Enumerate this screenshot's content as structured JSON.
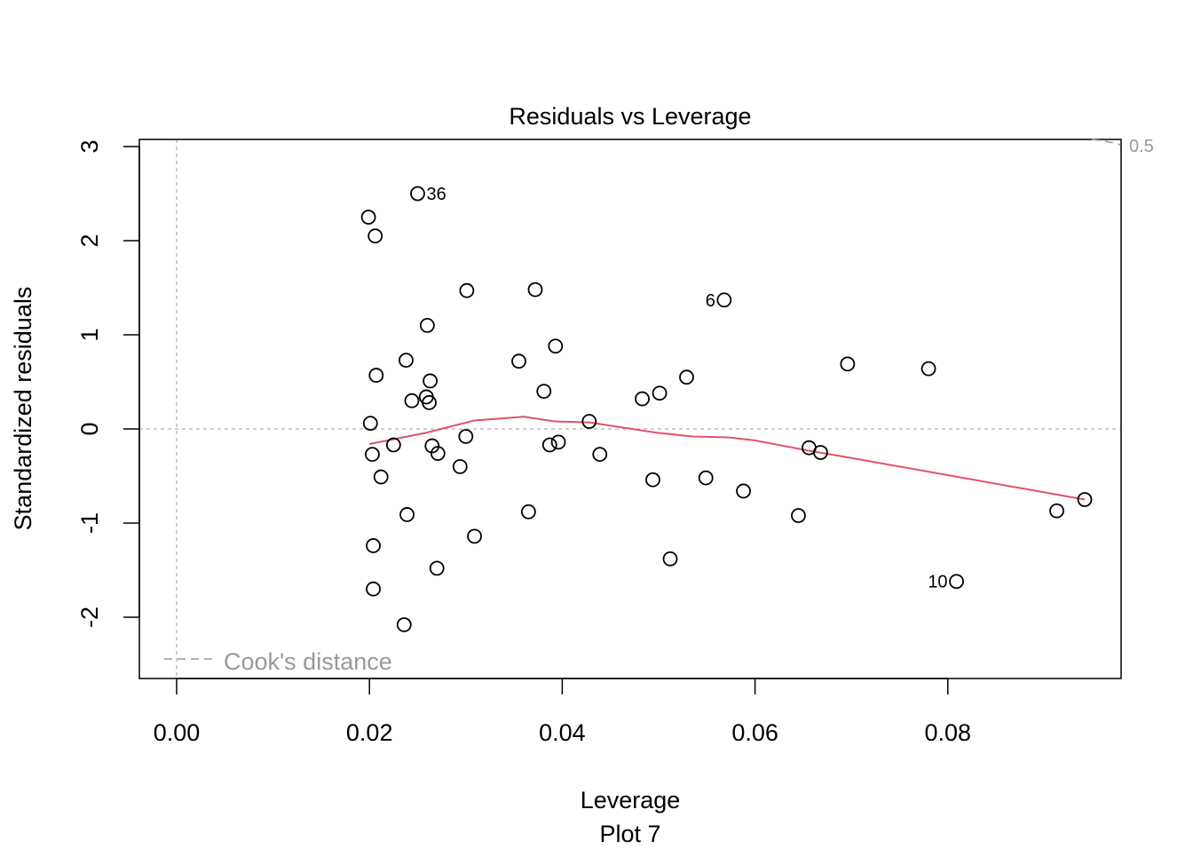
{
  "chart_data": {
    "type": "scatter",
    "title": "Residuals vs Leverage",
    "xlabel": "Leverage",
    "subtitle": "Plot 7",
    "ylabel": "Standardized residuals",
    "xlim": [
      -0.004,
      0.098
    ],
    "ylim": [
      -2.65,
      3.05
    ],
    "xticks": [
      "0.00",
      "0.02",
      "0.04",
      "0.06",
      "0.08"
    ],
    "xtick_values": [
      0,
      0.02,
      0.04,
      0.06,
      0.08
    ],
    "yticks": [
      "-2",
      "-1",
      "0",
      "1",
      "2",
      "3"
    ],
    "ytick_values": [
      -2,
      -1,
      0,
      1,
      2,
      3
    ],
    "points": [
      [
        0.0199,
        2.25
      ],
      [
        0.0206,
        2.05
      ],
      [
        0.025,
        2.5
      ],
      [
        0.0301,
        1.47
      ],
      [
        0.0372,
        1.48
      ],
      [
        0.0568,
        1.37
      ],
      [
        0.026,
        1.1
      ],
      [
        0.0393,
        0.88
      ],
      [
        0.0238,
        0.73
      ],
      [
        0.0355,
        0.72
      ],
      [
        0.0696,
        0.69
      ],
      [
        0.078,
        0.64
      ],
      [
        0.0207,
        0.57
      ],
      [
        0.0263,
        0.51
      ],
      [
        0.0529,
        0.55
      ],
      [
        0.0381,
        0.4
      ],
      [
        0.0501,
        0.38
      ],
      [
        0.0483,
        0.32
      ],
      [
        0.0244,
        0.3
      ],
      [
        0.0259,
        0.34
      ],
      [
        0.0262,
        0.28
      ],
      [
        0.0201,
        0.06
      ],
      [
        0.0428,
        0.08
      ],
      [
        0.0225,
        -0.17
      ],
      [
        0.03,
        -0.08
      ],
      [
        0.0265,
        -0.18
      ],
      [
        0.0387,
        -0.17
      ],
      [
        0.0396,
        -0.14
      ],
      [
        0.0203,
        -0.27
      ],
      [
        0.0271,
        -0.26
      ],
      [
        0.0439,
        -0.27
      ],
      [
        0.0656,
        -0.2
      ],
      [
        0.0668,
        -0.25
      ],
      [
        0.0294,
        -0.4
      ],
      [
        0.0212,
        -0.51
      ],
      [
        0.0494,
        -0.54
      ],
      [
        0.0549,
        -0.52
      ],
      [
        0.0588,
        -0.66
      ],
      [
        0.0365,
        -0.88
      ],
      [
        0.0239,
        -0.91
      ],
      [
        0.0645,
        -0.92
      ],
      [
        0.0913,
        -0.87
      ],
      [
        0.0942,
        -0.75
      ],
      [
        0.0309,
        -1.14
      ],
      [
        0.0204,
        -1.24
      ],
      [
        0.0512,
        -1.38
      ],
      [
        0.027,
        -1.48
      ],
      [
        0.0809,
        -1.62
      ],
      [
        0.0204,
        -1.7
      ],
      [
        0.0236,
        -2.08
      ]
    ],
    "point_labels": [
      {
        "label": "36",
        "x": 0.025,
        "y": 2.5,
        "side": "right"
      },
      {
        "label": "6",
        "x": 0.0568,
        "y": 1.37,
        "side": "left"
      },
      {
        "label": "10",
        "x": 0.0809,
        "y": -1.62,
        "side": "left"
      }
    ],
    "smooth_line": {
      "color": "#DF536B",
      "x": [
        0.02,
        0.0259,
        0.0309,
        0.036,
        0.0392,
        0.0428,
        0.0498,
        0.0535,
        0.0572,
        0.0599,
        0.0655,
        0.0701,
        0.0942
      ],
      "y": [
        -0.16,
        -0.04,
        0.09,
        0.13,
        0.08,
        0.07,
        -0.04,
        -0.08,
        -0.09,
        -0.12,
        -0.23,
        -0.31,
        -0.75
      ]
    },
    "reference_lines": {
      "h": 0,
      "v": 0,
      "style": "dotted",
      "color": "#BEBEBE"
    },
    "cooks_distance": {
      "legend": "Cook's distance",
      "contour_label": "0.5",
      "color": "#999999"
    },
    "legend_position": "bottom-left",
    "grid": false
  }
}
